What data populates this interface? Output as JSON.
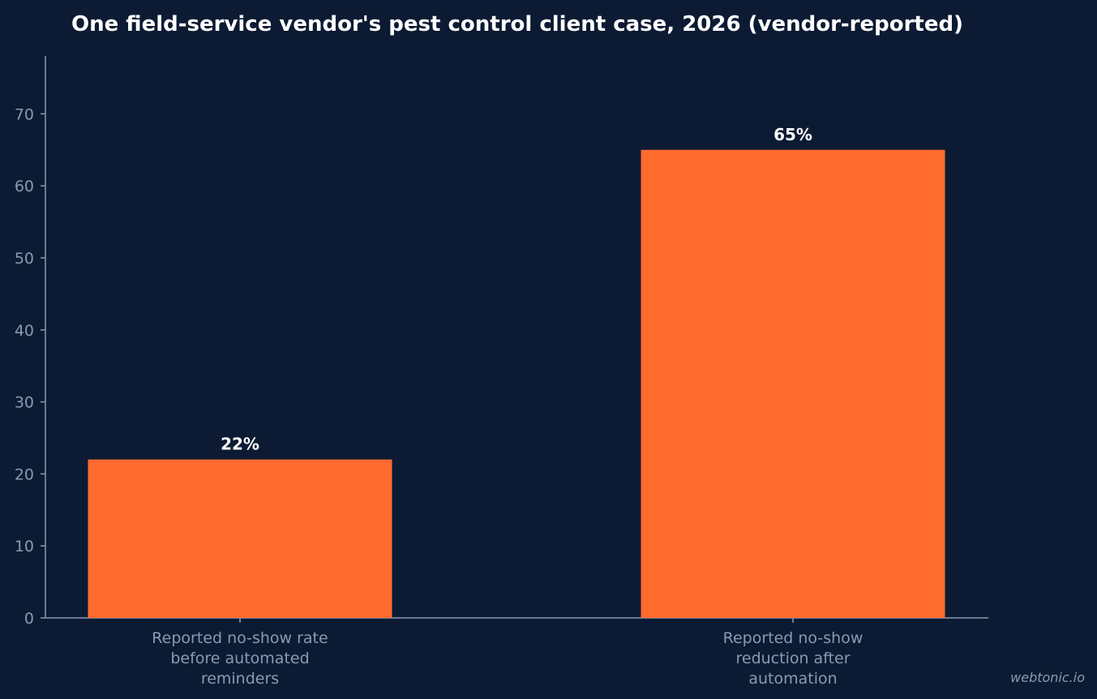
{
  "chart_data": {
    "type": "bar",
    "title": "One field-service vendor's pest control client case, 2026 (vendor-reported)",
    "xlabel": "",
    "ylabel": "",
    "categories": [
      [
        "Reported no-show rate",
        "before automated",
        "reminders"
      ],
      [
        "Reported no-show",
        "reduction after",
        "automation"
      ]
    ],
    "values": [
      22,
      65
    ],
    "value_labels": [
      "22%",
      "65%"
    ],
    "ylim": [
      0,
      78
    ],
    "yticks": [
      0,
      10,
      20,
      30,
      40,
      50,
      60,
      70
    ],
    "grid": false,
    "bar_color": "#ff6b2f"
  },
  "watermark": "webtonic.io",
  "colors": {
    "background": "#0c1b33",
    "axis": "#8a9ab3",
    "text": "#ffffff"
  }
}
